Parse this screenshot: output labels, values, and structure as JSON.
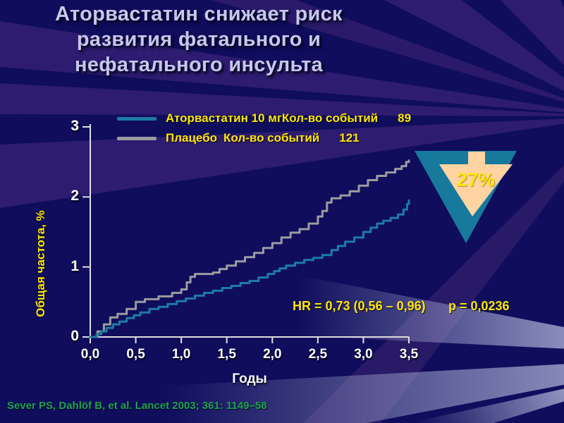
{
  "slide": {
    "title": "Аторвастатин снижает риск\nразвития фатального и\nнефатального инсульта",
    "hr_text": "HR = 0,73 (0,56 – 0,96)",
    "p_text": "p = 0,0236",
    "citation": "Sever PS, Dahlöf B, et al. Lancet 2003; 361: 1149–58",
    "reduction_badge": {
      "label": "27%",
      "triangle_color": "#17799c",
      "arrow_color": "#ffd4a2",
      "label_color": "#ffe609"
    }
  },
  "legend": {
    "rows": [
      {
        "name": "Аторвастатин 10 мг",
        "events_label": "Кол-во событий",
        "count": "89",
        "color": "#1f7ba3"
      },
      {
        "name": "Плацебо",
        "events_label": "Кол-во событий",
        "count": "121",
        "color": "#9b9ba1"
      }
    ]
  },
  "colors": {
    "background_navy": "#0f0d5c",
    "ray_purple": "#2d1c70",
    "ray_light": "#aab0d6",
    "accent_yellow": "#ffe609",
    "title_lavender": "#c7c6ee",
    "axis_white": "#dedede",
    "citation_green": "#1ea351",
    "atorvastatin_line": "#1f7ba3",
    "placebo_line": "#9b9ba1"
  },
  "chart_data": {
    "type": "line",
    "subtype": "kaplan-meier-step",
    "title": "",
    "xlabel": "Годы",
    "ylabel": "Общая частота, %",
    "xlim": [
      0,
      3.5
    ],
    "ylim": [
      0,
      3
    ],
    "grid": false,
    "legend_position": "top",
    "x_ticks": {
      "values": [
        0,
        0.5,
        1.0,
        1.5,
        2.0,
        2.5,
        3.0,
        3.5
      ],
      "labels": [
        "0,0",
        "0,5",
        "1,0",
        "1,5",
        "2,0",
        "2,5",
        "3,0",
        "3,5"
      ]
    },
    "y_ticks": {
      "values": [
        0,
        1,
        2,
        3
      ],
      "labels": [
        "0",
        "1",
        "2",
        "3"
      ]
    },
    "series": [
      {
        "name": "Плацебо",
        "events": 121,
        "color": "#9b9ba1",
        "points": [
          [
            0,
            0
          ],
          [
            0.08,
            0.08
          ],
          [
            0.15,
            0.18
          ],
          [
            0.22,
            0.28
          ],
          [
            0.3,
            0.33
          ],
          [
            0.4,
            0.4
          ],
          [
            0.5,
            0.5
          ],
          [
            0.6,
            0.54
          ],
          [
            0.75,
            0.58
          ],
          [
            0.9,
            0.63
          ],
          [
            1.0,
            0.68
          ],
          [
            1.06,
            0.78
          ],
          [
            1.1,
            0.86
          ],
          [
            1.15,
            0.9
          ],
          [
            1.35,
            0.92
          ],
          [
            1.42,
            0.97
          ],
          [
            1.5,
            1.02
          ],
          [
            1.6,
            1.08
          ],
          [
            1.7,
            1.14
          ],
          [
            1.8,
            1.2
          ],
          [
            1.9,
            1.27
          ],
          [
            2.0,
            1.34
          ],
          [
            2.1,
            1.42
          ],
          [
            2.2,
            1.49
          ],
          [
            2.3,
            1.54
          ],
          [
            2.4,
            1.62
          ],
          [
            2.5,
            1.72
          ],
          [
            2.55,
            1.8
          ],
          [
            2.6,
            1.92
          ],
          [
            2.65,
            1.98
          ],
          [
            2.75,
            2.02
          ],
          [
            2.85,
            2.08
          ],
          [
            2.95,
            2.16
          ],
          [
            3.05,
            2.24
          ],
          [
            3.15,
            2.3
          ],
          [
            3.25,
            2.35
          ],
          [
            3.35,
            2.4
          ],
          [
            3.42,
            2.44
          ],
          [
            3.47,
            2.5
          ],
          [
            3.5,
            2.52
          ]
        ]
      },
      {
        "name": "Аторвастатин 10 мг",
        "events": 89,
        "color": "#1f7ba3",
        "points": [
          [
            0,
            0
          ],
          [
            0.07,
            0.04
          ],
          [
            0.12,
            0.08
          ],
          [
            0.18,
            0.13
          ],
          [
            0.25,
            0.18
          ],
          [
            0.32,
            0.22
          ],
          [
            0.4,
            0.27
          ],
          [
            0.48,
            0.31
          ],
          [
            0.55,
            0.35
          ],
          [
            0.65,
            0.4
          ],
          [
            0.75,
            0.43
          ],
          [
            0.85,
            0.47
          ],
          [
            0.95,
            0.51
          ],
          [
            1.05,
            0.55
          ],
          [
            1.15,
            0.59
          ],
          [
            1.25,
            0.63
          ],
          [
            1.35,
            0.66
          ],
          [
            1.45,
            0.7
          ],
          [
            1.55,
            0.73
          ],
          [
            1.65,
            0.77
          ],
          [
            1.75,
            0.8
          ],
          [
            1.85,
            0.85
          ],
          [
            1.95,
            0.9
          ],
          [
            2.02,
            0.94
          ],
          [
            2.08,
            0.98
          ],
          [
            2.15,
            1.02
          ],
          [
            2.25,
            1.06
          ],
          [
            2.35,
            1.1
          ],
          [
            2.45,
            1.13
          ],
          [
            2.55,
            1.17
          ],
          [
            2.65,
            1.24
          ],
          [
            2.72,
            1.3
          ],
          [
            2.8,
            1.36
          ],
          [
            2.9,
            1.42
          ],
          [
            3.0,
            1.5
          ],
          [
            3.08,
            1.56
          ],
          [
            3.15,
            1.62
          ],
          [
            3.22,
            1.66
          ],
          [
            3.3,
            1.7
          ],
          [
            3.38,
            1.75
          ],
          [
            3.44,
            1.82
          ],
          [
            3.48,
            1.9
          ],
          [
            3.5,
            1.95
          ]
        ]
      }
    ]
  }
}
